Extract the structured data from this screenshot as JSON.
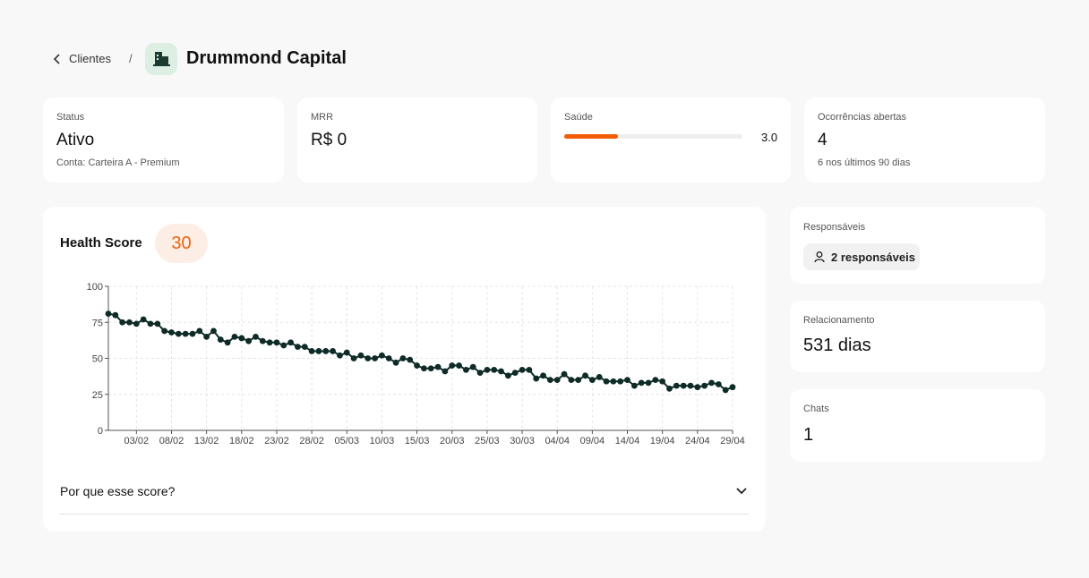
{
  "breadcrumb": {
    "back": "Clientes",
    "separator": "/",
    "title": "Drummond Capital"
  },
  "stats": [
    {
      "label": "Status",
      "value": "Ativo",
      "note": "Conta: Carteira A - Premium"
    },
    {
      "label": "MRR",
      "value": "R$ 0"
    },
    {
      "label": "Saúde",
      "score": 3,
      "score_label": "3.0"
    },
    {
      "label": "Ocorrências abertas",
      "value": "4",
      "note": "6 nos últimos 90 dias"
    }
  ],
  "chart_data": {
    "type": "line",
    "title": "Health Score",
    "score": 30,
    "categories": [
      null,
      null,
      null,
      null,
      "03/02",
      null,
      null,
      null,
      null,
      "08/02",
      null,
      null,
      null,
      null,
      "13/02",
      null,
      null,
      null,
      null,
      "18/02",
      null,
      null,
      null,
      null,
      "23/02",
      null,
      null,
      null,
      null,
      "28/02",
      null,
      null,
      null,
      null,
      "05/03",
      null,
      null,
      null,
      null,
      "10/03",
      null,
      null,
      null,
      null,
      "15/03",
      null,
      null,
      null,
      null,
      "20/03",
      null,
      null,
      null,
      null,
      "25/03",
      null,
      null,
      null,
      null,
      "30/03",
      null,
      null,
      null,
      null,
      "04/04",
      null,
      null,
      null,
      null,
      "09/04",
      null,
      null,
      null,
      null,
      "14/04",
      null,
      null,
      null,
      null,
      "19/04",
      null,
      null,
      null,
      null,
      "24/04",
      null,
      null,
      null,
      null,
      "29/04"
    ],
    "series": [
      {
        "color": "#0e2b27",
        "values": [
          81,
          80,
          75,
          75,
          74,
          77,
          74,
          74,
          69,
          68,
          67,
          67,
          67,
          69,
          65,
          69,
          63,
          61,
          65,
          64,
          62,
          65,
          62,
          61,
          61,
          59,
          61,
          58,
          58,
          55,
          55,
          55,
          55,
          52,
          54,
          50,
          52,
          50,
          50,
          52,
          50,
          47,
          50,
          49,
          45,
          43,
          43,
          44,
          41,
          45,
          45,
          42,
          44,
          40,
          42,
          42,
          41,
          38,
          40,
          42,
          42,
          36,
          38,
          35,
          35,
          39,
          35,
          35,
          38,
          35,
          37,
          34,
          34,
          34,
          35,
          31,
          33,
          33,
          35,
          34,
          29,
          31,
          31,
          31,
          30,
          31,
          33,
          32,
          28,
          30
        ]
      }
    ],
    "ylim": [
      0,
      100
    ],
    "yticks": [
      0,
      25,
      50,
      75,
      100
    ],
    "grid": true
  },
  "score_question": "Por que esse score?",
  "side": {
    "responsaveis": {
      "label": "Responsáveis",
      "button": "2 responsáveis"
    },
    "relacionamento": {
      "label": "Relacionamento",
      "value": "531 dias"
    },
    "chats": {
      "label": "Chats",
      "value": "1"
    }
  }
}
